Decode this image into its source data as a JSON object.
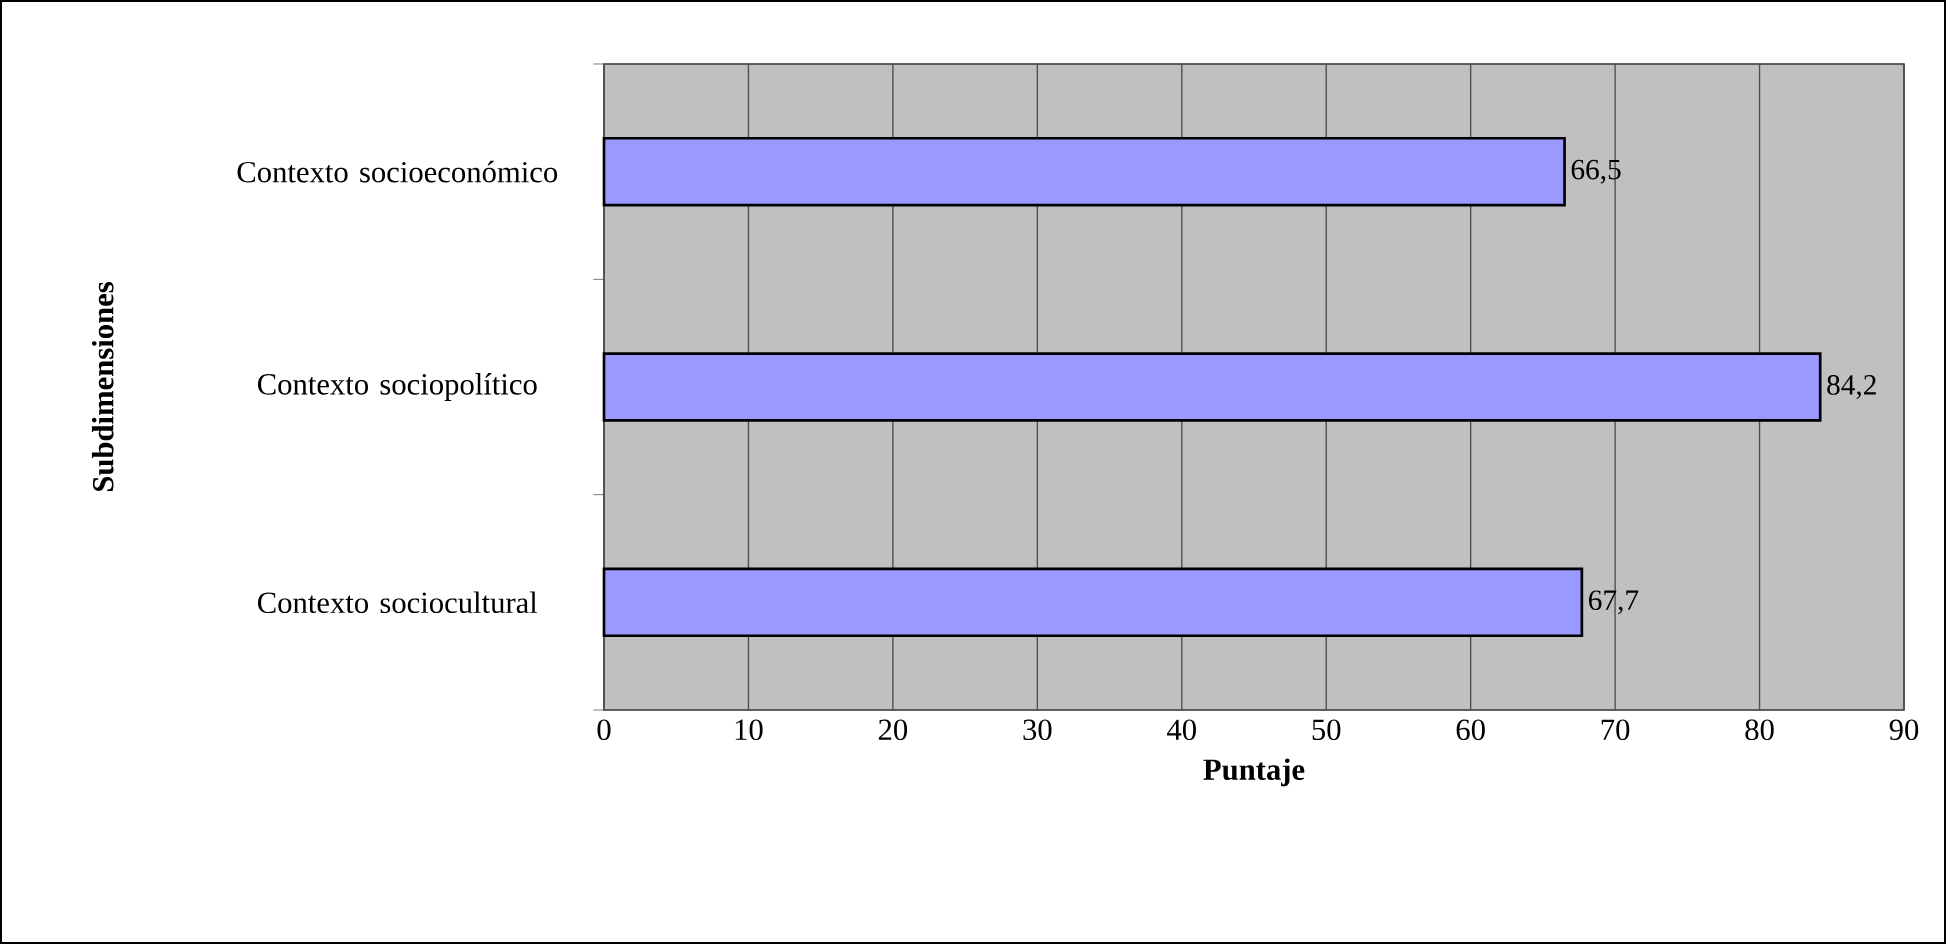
{
  "chart_data": {
    "type": "bar",
    "orientation": "horizontal",
    "xlabel": "Puntaje",
    "ylabel": "Subdimensiones",
    "categories": [
      "Contexto socioeconómico",
      "Contexto sociopolítico",
      "Contexto sociocultural"
    ],
    "values": [
      66.5,
      84.2,
      67.7
    ],
    "value_labels": [
      "66,5",
      "84,2",
      "67,7"
    ],
    "color": "#9999ff",
    "xlim": [
      0,
      90
    ],
    "xticks": [
      0,
      10,
      20,
      30,
      40,
      50,
      60,
      70,
      80,
      90
    ],
    "grid": "x"
  }
}
